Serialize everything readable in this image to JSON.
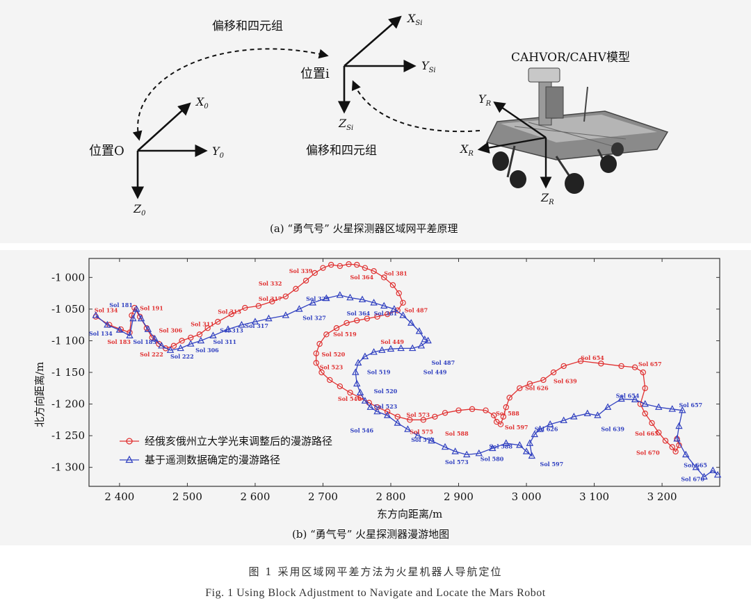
{
  "panel_a": {
    "caption": "(a) “勇气号” 火星探测器区域网平差原理",
    "label_offset_top": "偏移和四元组",
    "label_offset_mid": "偏移和四元组",
    "label_pos_i": "位置i",
    "label_pos_o": "位置O",
    "label_model": "CAHVOR/CAHV模型",
    "axis_labels": {
      "xsi": "X",
      "xsi_sub": "Si",
      "ysi": "Y",
      "ysi_sub": "Si",
      "zsi": "Z",
      "zsi_sub": "Si",
      "x0": "X",
      "x0_sub": "0",
      "y0": "Y",
      "y0_sub": "0",
      "z0": "Z",
      "z0_sub": "0",
      "yr": "Y",
      "yr_sub": "R",
      "xr": "X",
      "xr_sub": "R",
      "zr": "Z",
      "zr_sub": "R"
    }
  },
  "panel_b": {
    "caption": "(b) “勇气号” 火星探测器漫游地图"
  },
  "figure_caption_cn": "图 1   采用区域网平差方法为火星机器人导航定位",
  "figure_caption_en": "Fig. 1   Using Block Adjustment to Navigate and Locate the Mars Robot",
  "chart_data": {
    "type": "line",
    "xlabel": "东方向距离/m",
    "ylabel": "北方向距离/m",
    "xlim": [
      2355,
      3285
    ],
    "ylim": [
      -1330,
      -970
    ],
    "x_ticks": [
      2400,
      2500,
      2600,
      2700,
      2800,
      2900,
      3000,
      3100,
      3200
    ],
    "x_tick_labels": [
      "2 400",
      "2 500",
      "2 600",
      "2 700",
      "2 800",
      "2 900",
      "3 000",
      "3 100",
      "3 200"
    ],
    "y_ticks": [
      -1000,
      -1050,
      -1100,
      -1150,
      -1200,
      -1250,
      -1300
    ],
    "y_tick_labels": [
      "-1 000",
      "-1 050",
      "-1 100",
      "-1 150",
      "-1 200",
      "-1 250",
      "-1 300"
    ],
    "legend_placement": "bottom-left",
    "series": [
      {
        "name": "经俄亥俄州立大学光束调整后的漫游路径",
        "color": "#e03030",
        "marker": "circle",
        "points": [
          [
            2365,
            -1062
          ],
          [
            2385,
            -1075
          ],
          [
            2402,
            -1082
          ],
          [
            2415,
            -1087
          ],
          [
            2418,
            -1060
          ],
          [
            2422,
            -1048
          ],
          [
            2430,
            -1062
          ],
          [
            2440,
            -1080
          ],
          [
            2448,
            -1095
          ],
          [
            2458,
            -1105
          ],
          [
            2468,
            -1112
          ],
          [
            2480,
            -1108
          ],
          [
            2492,
            -1100
          ],
          [
            2505,
            -1095
          ],
          [
            2518,
            -1090
          ],
          [
            2530,
            -1080
          ],
          [
            2545,
            -1070
          ],
          [
            2565,
            -1058
          ],
          [
            2585,
            -1048
          ],
          [
            2605,
            -1045
          ],
          [
            2625,
            -1038
          ],
          [
            2645,
            -1030
          ],
          [
            2660,
            -1018
          ],
          [
            2675,
            -1005
          ],
          [
            2688,
            -993
          ],
          [
            2700,
            -985
          ],
          [
            2712,
            -980
          ],
          [
            2725,
            -982
          ],
          [
            2738,
            -979
          ],
          [
            2750,
            -980
          ],
          [
            2762,
            -985
          ],
          [
            2775,
            -990
          ],
          [
            2790,
            -1000
          ],
          [
            2803,
            -1012
          ],
          [
            2812,
            -1025
          ],
          [
            2818,
            -1040
          ],
          [
            2810,
            -1052
          ],
          [
            2795,
            -1058
          ],
          [
            2780,
            -1062
          ],
          [
            2765,
            -1065
          ],
          [
            2750,
            -1068
          ],
          [
            2735,
            -1072
          ],
          [
            2720,
            -1080
          ],
          [
            2705,
            -1090
          ],
          [
            2695,
            -1105
          ],
          [
            2690,
            -1120
          ],
          [
            2690,
            -1135
          ],
          [
            2698,
            -1150
          ],
          [
            2710,
            -1162
          ],
          [
            2725,
            -1172
          ],
          [
            2740,
            -1182
          ],
          [
            2755,
            -1190
          ],
          [
            2768,
            -1198
          ],
          [
            2780,
            -1205
          ],
          [
            2795,
            -1212
          ],
          [
            2810,
            -1220
          ],
          [
            2828,
            -1225
          ],
          [
            2848,
            -1225
          ],
          [
            2865,
            -1220
          ],
          [
            2880,
            -1214
          ],
          [
            2900,
            -1210
          ],
          [
            2920,
            -1208
          ],
          [
            2940,
            -1210
          ],
          [
            2952,
            -1218
          ],
          [
            2956,
            -1228
          ],
          [
            2962,
            -1232
          ],
          [
            2966,
            -1220
          ],
          [
            2970,
            -1205
          ],
          [
            2975,
            -1190
          ],
          [
            2990,
            -1175
          ],
          [
            3005,
            -1168
          ],
          [
            3025,
            -1162
          ],
          [
            3040,
            -1150
          ],
          [
            3055,
            -1140
          ],
          [
            3080,
            -1132
          ],
          [
            3110,
            -1136
          ],
          [
            3140,
            -1140
          ],
          [
            3160,
            -1142
          ],
          [
            3172,
            -1150
          ],
          [
            3175,
            -1175
          ],
          [
            3168,
            -1200
          ],
          [
            3175,
            -1215
          ],
          [
            3185,
            -1230
          ],
          [
            3195,
            -1245
          ],
          [
            3205,
            -1258
          ],
          [
            3215,
            -1268
          ],
          [
            3220,
            -1275
          ],
          [
            3225,
            -1265
          ],
          [
            3222,
            -1255
          ]
        ]
      },
      {
        "name": "基于遥测数据确定的漫游路径",
        "color": "#3040c0",
        "marker": "triangle",
        "points": [
          [
            2365,
            -1060
          ],
          [
            2382,
            -1075
          ],
          [
            2400,
            -1083
          ],
          [
            2415,
            -1092
          ],
          [
            2420,
            -1065
          ],
          [
            2425,
            -1050
          ],
          [
            2432,
            -1065
          ],
          [
            2442,
            -1082
          ],
          [
            2452,
            -1097
          ],
          [
            2462,
            -1108
          ],
          [
            2475,
            -1115
          ],
          [
            2490,
            -1112
          ],
          [
            2505,
            -1105
          ],
          [
            2520,
            -1100
          ],
          [
            2538,
            -1092
          ],
          [
            2560,
            -1082
          ],
          [
            2580,
            -1075
          ],
          [
            2600,
            -1070
          ],
          [
            2620,
            -1065
          ],
          [
            2645,
            -1060
          ],
          [
            2665,
            -1050
          ],
          [
            2685,
            -1040
          ],
          [
            2705,
            -1033
          ],
          [
            2725,
            -1028
          ],
          [
            2740,
            -1032
          ],
          [
            2758,
            -1035
          ],
          [
            2775,
            -1040
          ],
          [
            2790,
            -1045
          ],
          [
            2805,
            -1050
          ],
          [
            2818,
            -1060
          ],
          [
            2830,
            -1072
          ],
          [
            2842,
            -1085
          ],
          [
            2850,
            -1098
          ],
          [
            2855,
            -1100
          ],
          [
            2845,
            -1108
          ],
          [
            2832,
            -1112
          ],
          [
            2815,
            -1112
          ],
          [
            2800,
            -1113
          ],
          [
            2787,
            -1115
          ],
          [
            2775,
            -1118
          ],
          [
            2762,
            -1125
          ],
          [
            2752,
            -1135
          ],
          [
            2748,
            -1150
          ],
          [
            2750,
            -1168
          ],
          [
            2755,
            -1182
          ],
          [
            2762,
            -1195
          ],
          [
            2770,
            -1205
          ],
          [
            2780,
            -1212
          ],
          [
            2795,
            -1218
          ],
          [
            2810,
            -1230
          ],
          [
            2825,
            -1240
          ],
          [
            2840,
            -1250
          ],
          [
            2860,
            -1258
          ],
          [
            2880,
            -1268
          ],
          [
            2895,
            -1275
          ],
          [
            2912,
            -1280
          ],
          [
            2930,
            -1278
          ],
          [
            2950,
            -1270
          ],
          [
            2970,
            -1262
          ],
          [
            2990,
            -1265
          ],
          [
            3000,
            -1275
          ],
          [
            3008,
            -1282
          ],
          [
            3005,
            -1262
          ],
          [
            3012,
            -1248
          ],
          [
            3020,
            -1240
          ],
          [
            3035,
            -1232
          ],
          [
            3055,
            -1226
          ],
          [
            3070,
            -1220
          ],
          [
            3090,
            -1215
          ],
          [
            3105,
            -1218
          ],
          [
            3120,
            -1205
          ],
          [
            3140,
            -1192
          ],
          [
            3160,
            -1193
          ],
          [
            3175,
            -1200
          ],
          [
            3195,
            -1205
          ],
          [
            3215,
            -1208
          ],
          [
            3230,
            -1210
          ],
          [
            3225,
            -1235
          ],
          [
            3222,
            -1255
          ],
          [
            3235,
            -1280
          ],
          [
            3250,
            -1300
          ],
          [
            3262,
            -1315
          ],
          [
            3275,
            -1305
          ],
          [
            3282,
            -1312
          ]
        ]
      }
    ],
    "annotations": [
      {
        "text": "Sol 134",
        "x": 2363,
        "y": -1055,
        "color": "#e03030"
      },
      {
        "text": "Sol 134",
        "x": 2355,
        "y": -1092,
        "color": "#3040c0"
      },
      {
        "text": "Sol 181",
        "x": 2385,
        "y": -1047,
        "color": "#3040c0"
      },
      {
        "text": "Sol 191",
        "x": 2430,
        "y": -1052,
        "color": "#e03030"
      },
      {
        "text": "Sol 183",
        "x": 2382,
        "y": -1105,
        "color": "#e03030"
      },
      {
        "text": "Sol 183",
        "x": 2420,
        "y": -1105,
        "color": "#3040c0"
      },
      {
        "text": "Sol 222",
        "x": 2430,
        "y": -1125,
        "color": "#e03030"
      },
      {
        "text": "Sol 222",
        "x": 2475,
        "y": -1128,
        "color": "#3040c0"
      },
      {
        "text": "Sol 306",
        "x": 2458,
        "y": -1087,
        "color": "#e03030"
      },
      {
        "text": "Sol 306",
        "x": 2512,
        "y": -1118,
        "color": "#3040c0"
      },
      {
        "text": "Sol 311",
        "x": 2505,
        "y": -1077,
        "color": "#e03030"
      },
      {
        "text": "Sol 311",
        "x": 2538,
        "y": -1105,
        "color": "#3040c0"
      },
      {
        "text": "Sol 313",
        "x": 2545,
        "y": -1057,
        "color": "#e03030"
      },
      {
        "text": "Sol 313",
        "x": 2548,
        "y": -1087,
        "color": "#3040c0"
      },
      {
        "text": "Sol 317",
        "x": 2605,
        "y": -1037,
        "color": "#e03030"
      },
      {
        "text": "Sol 317",
        "x": 2585,
        "y": -1080,
        "color": "#3040c0"
      },
      {
        "text": "Sol 327",
        "x": 2670,
        "y": -1067,
        "color": "#3040c0"
      },
      {
        "text": "Sol 329",
        "x": 2675,
        "y": -1037,
        "color": "#3040c0"
      },
      {
        "text": "Sol 332",
        "x": 2605,
        "y": -1013,
        "color": "#e03030"
      },
      {
        "text": "Sol 339",
        "x": 2650,
        "y": -993,
        "color": "#e03030"
      },
      {
        "text": "Sol 364",
        "x": 2740,
        "y": -1003,
        "color": "#e03030"
      },
      {
        "text": "Sol 364",
        "x": 2735,
        "y": -1060,
        "color": "#3040c0"
      },
      {
        "text": "Sol 381",
        "x": 2775,
        "y": -1060,
        "color": "#3040c0"
      },
      {
        "text": "Sol 381",
        "x": 2790,
        "y": -997,
        "color": "#e03030"
      },
      {
        "text": "Sol 487",
        "x": 2820,
        "y": -1055,
        "color": "#e03030"
      },
      {
        "text": "Sol 487",
        "x": 2860,
        "y": -1138,
        "color": "#3040c0"
      },
      {
        "text": "Sol 449",
        "x": 2785,
        "y": -1105,
        "color": "#e03030"
      },
      {
        "text": "Sol 449",
        "x": 2848,
        "y": -1153,
        "color": "#3040c0"
      },
      {
        "text": "Sol 519",
        "x": 2715,
        "y": -1093,
        "color": "#e03030"
      },
      {
        "text": "Sol 519",
        "x": 2765,
        "y": -1153,
        "color": "#3040c0"
      },
      {
        "text": "Sol 520",
        "x": 2698,
        "y": -1125,
        "color": "#e03030"
      },
      {
        "text": "Sol 520",
        "x": 2775,
        "y": -1183,
        "color": "#3040c0"
      },
      {
        "text": "Sol 523",
        "x": 2695,
        "y": -1145,
        "color": "#e03030"
      },
      {
        "text": "Sol 523",
        "x": 2775,
        "y": -1207,
        "color": "#3040c0"
      },
      {
        "text": "Sol 546",
        "x": 2722,
        "y": -1195,
        "color": "#e03030"
      },
      {
        "text": "Sol 546",
        "x": 2740,
        "y": -1245,
        "color": "#3040c0"
      },
      {
        "text": "Sol 573",
        "x": 2823,
        "y": -1220,
        "color": "#e03030"
      },
      {
        "text": "Sol 573",
        "x": 2830,
        "y": -1260,
        "color": "#3040c0"
      },
      {
        "text": "Sol 573",
        "x": 2880,
        "y": -1295,
        "color": "#3040c0"
      },
      {
        "text": "Sol 575",
        "x": 2828,
        "y": -1247,
        "color": "#e03030"
      },
      {
        "text": "Sol 588",
        "x": 2880,
        "y": -1250,
        "color": "#e03030"
      },
      {
        "text": "Sol 588",
        "x": 2955,
        "y": -1218,
        "color": "#e03030"
      },
      {
        "text": "Sol 588",
        "x": 2945,
        "y": -1270,
        "color": "#3040c0"
      },
      {
        "text": "Sol 580",
        "x": 2932,
        "y": -1290,
        "color": "#3040c0"
      },
      {
        "text": "Sol 597",
        "x": 2968,
        "y": -1240,
        "color": "#e03030"
      },
      {
        "text": "Sol 597",
        "x": 3020,
        "y": -1298,
        "color": "#3040c0"
      },
      {
        "text": "Sol 626",
        "x": 2998,
        "y": -1178,
        "color": "#e03030"
      },
      {
        "text": "Sol 626",
        "x": 3012,
        "y": -1243,
        "color": "#3040c0"
      },
      {
        "text": "Sol 639",
        "x": 3040,
        "y": -1167,
        "color": "#e03030"
      },
      {
        "text": "Sol 639",
        "x": 3110,
        "y": -1243,
        "color": "#3040c0"
      },
      {
        "text": "Sol 654",
        "x": 3080,
        "y": -1130,
        "color": "#e03030"
      },
      {
        "text": "Sol 654",
        "x": 3132,
        "y": -1190,
        "color": "#3040c0"
      },
      {
        "text": "Sol 657",
        "x": 3165,
        "y": -1140,
        "color": "#e03030"
      },
      {
        "text": "Sol 657",
        "x": 3225,
        "y": -1205,
        "color": "#3040c0"
      },
      {
        "text": "Sol 665",
        "x": 3160,
        "y": -1250,
        "color": "#e03030"
      },
      {
        "text": "Sol 665",
        "x": 3232,
        "y": -1300,
        "color": "#3040c0"
      },
      {
        "text": "Sol 670",
        "x": 3162,
        "y": -1280,
        "color": "#e03030"
      },
      {
        "text": "Sol 670",
        "x": 3228,
        "y": -1322,
        "color": "#3040c0"
      }
    ]
  }
}
